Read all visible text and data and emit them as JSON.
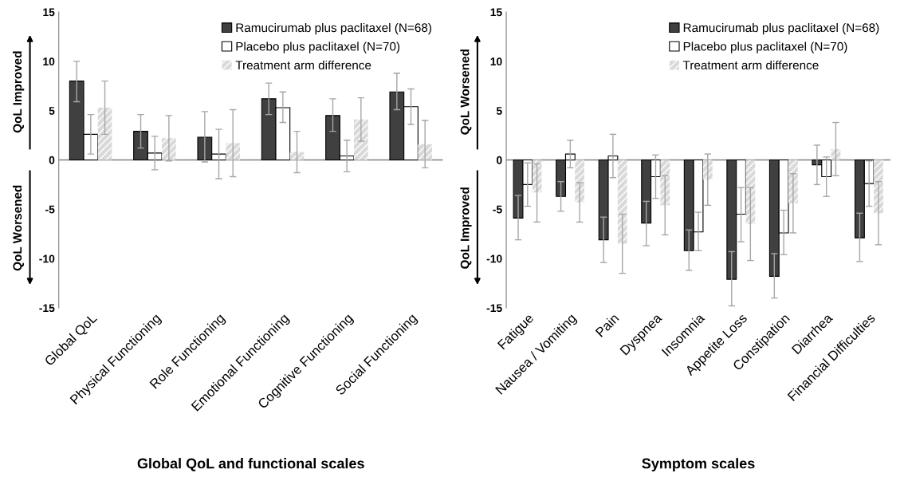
{
  "chart_data": [
    {
      "type": "bar",
      "xlabel": "Global QoL and functional scales",
      "categories": [
        "Global QoL",
        "Physical Functioning",
        "Role Functioning",
        "Emotional Functioning",
        "Cognitive Functioning",
        "Social Functioning"
      ],
      "series": [
        {
          "name": "Ramucirumab plus paclitaxel (N=68)",
          "color": "#404040",
          "values": [
            8.0,
            2.9,
            2.3,
            6.2,
            4.5,
            6.9
          ],
          "errors": [
            [
              5.9,
              10.0
            ],
            [
              1.2,
              4.6
            ],
            [
              -0.2,
              4.9
            ],
            [
              4.6,
              7.8
            ],
            [
              2.9,
              6.2
            ],
            [
              5.1,
              8.8
            ]
          ]
        },
        {
          "name": "Placebo plus paclitaxel (N=70)",
          "color": "#ffffff",
          "values": [
            2.6,
            0.7,
            0.6,
            5.3,
            0.4,
            5.4
          ],
          "errors": [
            [
              0.6,
              4.6
            ],
            [
              -1.0,
              2.4
            ],
            [
              -1.9,
              3.1
            ],
            [
              3.8,
              6.9
            ],
            [
              -1.2,
              2.0
            ],
            [
              3.6,
              7.2
            ]
          ]
        },
        {
          "name": "Treatment arm difference",
          "color": "#d9d9d9",
          "values": [
            5.3,
            2.2,
            1.7,
            0.8,
            4.1,
            1.6
          ],
          "errors": [
            [
              2.6,
              8.0
            ],
            [
              -0.1,
              4.5
            ],
            [
              -1.7,
              5.1
            ],
            [
              -1.3,
              2.9
            ],
            [
              1.9,
              6.3
            ],
            [
              -0.8,
              4.0
            ]
          ]
        }
      ],
      "ylim": [
        -15,
        15
      ],
      "yticks": [
        -15,
        -10,
        -5,
        0,
        5,
        10,
        15
      ],
      "grid": false,
      "legend": "top right",
      "ref_lines": [
        {
          "axis": "y",
          "value": 0,
          "color": "#808080"
        }
      ],
      "annotations": [
        "QoL Improved",
        "QoL Worsened"
      ]
    },
    {
      "type": "bar",
      "xlabel": "Symptom scales",
      "categories": [
        "Fatigue",
        "Nausea / Vomiting",
        "Pain",
        "Dyspnea",
        "Insomnia",
        "Appetite Loss",
        "Constipation",
        "Diarrhea",
        "Financial Difficulties"
      ],
      "series": [
        {
          "name": "Ramucirumab plus paclitaxel (N=68)",
          "color": "#404040",
          "values": [
            -5.9,
            -3.7,
            -8.1,
            -6.4,
            -9.2,
            -12.1,
            -11.8,
            -0.5,
            -7.9
          ],
          "errors": [
            [
              -8.1,
              -3.6
            ],
            [
              -5.2,
              -2.2
            ],
            [
              -10.4,
              -5.8
            ],
            [
              -8.7,
              -4.2
            ],
            [
              -11.2,
              -7.1
            ],
            [
              -14.8,
              -9.3
            ],
            [
              -14.0,
              -9.5
            ],
            [
              -2.5,
              1.5
            ],
            [
              -10.3,
              -5.4
            ]
          ]
        },
        {
          "name": "Placebo plus paclitaxel (N=70)",
          "color": "#ffffff",
          "values": [
            -2.5,
            0.6,
            0.4,
            -1.7,
            -7.3,
            -5.5,
            -7.4,
            -1.7,
            -2.4
          ],
          "errors": [
            [
              -4.7,
              -0.3
            ],
            [
              -0.8,
              2.0
            ],
            [
              -1.8,
              2.6
            ],
            [
              -3.9,
              0.5
            ],
            [
              -9.2,
              -5.3
            ],
            [
              -8.3,
              -2.8
            ],
            [
              -9.6,
              -5.1
            ],
            [
              -3.7,
              0.3
            ],
            [
              -4.7,
              -0.1
            ]
          ]
        },
        {
          "name": "Treatment arm difference",
          "color": "#d9d9d9",
          "values": [
            -3.3,
            -4.3,
            -8.5,
            -4.6,
            -2.0,
            -6.5,
            -4.4,
            1.1,
            -5.4
          ],
          "errors": [
            [
              -6.3,
              -0.4
            ],
            [
              -6.3,
              -2.3
            ],
            [
              -11.5,
              -5.5
            ],
            [
              -7.6,
              -1.6
            ],
            [
              -4.6,
              0.6
            ],
            [
              -10.2,
              -2.8
            ],
            [
              -7.4,
              -1.4
            ],
            [
              -1.6,
              3.8
            ],
            [
              -8.6,
              -2.2
            ]
          ]
        }
      ],
      "ylim": [
        -15,
        15
      ],
      "yticks": [
        -15,
        -10,
        -5,
        0,
        5,
        10,
        15
      ],
      "grid": false,
      "legend": "top right",
      "ref_lines": [
        {
          "axis": "y",
          "value": 0,
          "color": "#808080"
        }
      ],
      "annotations": [
        "QoL Worsened",
        "QoL Improved"
      ]
    }
  ]
}
